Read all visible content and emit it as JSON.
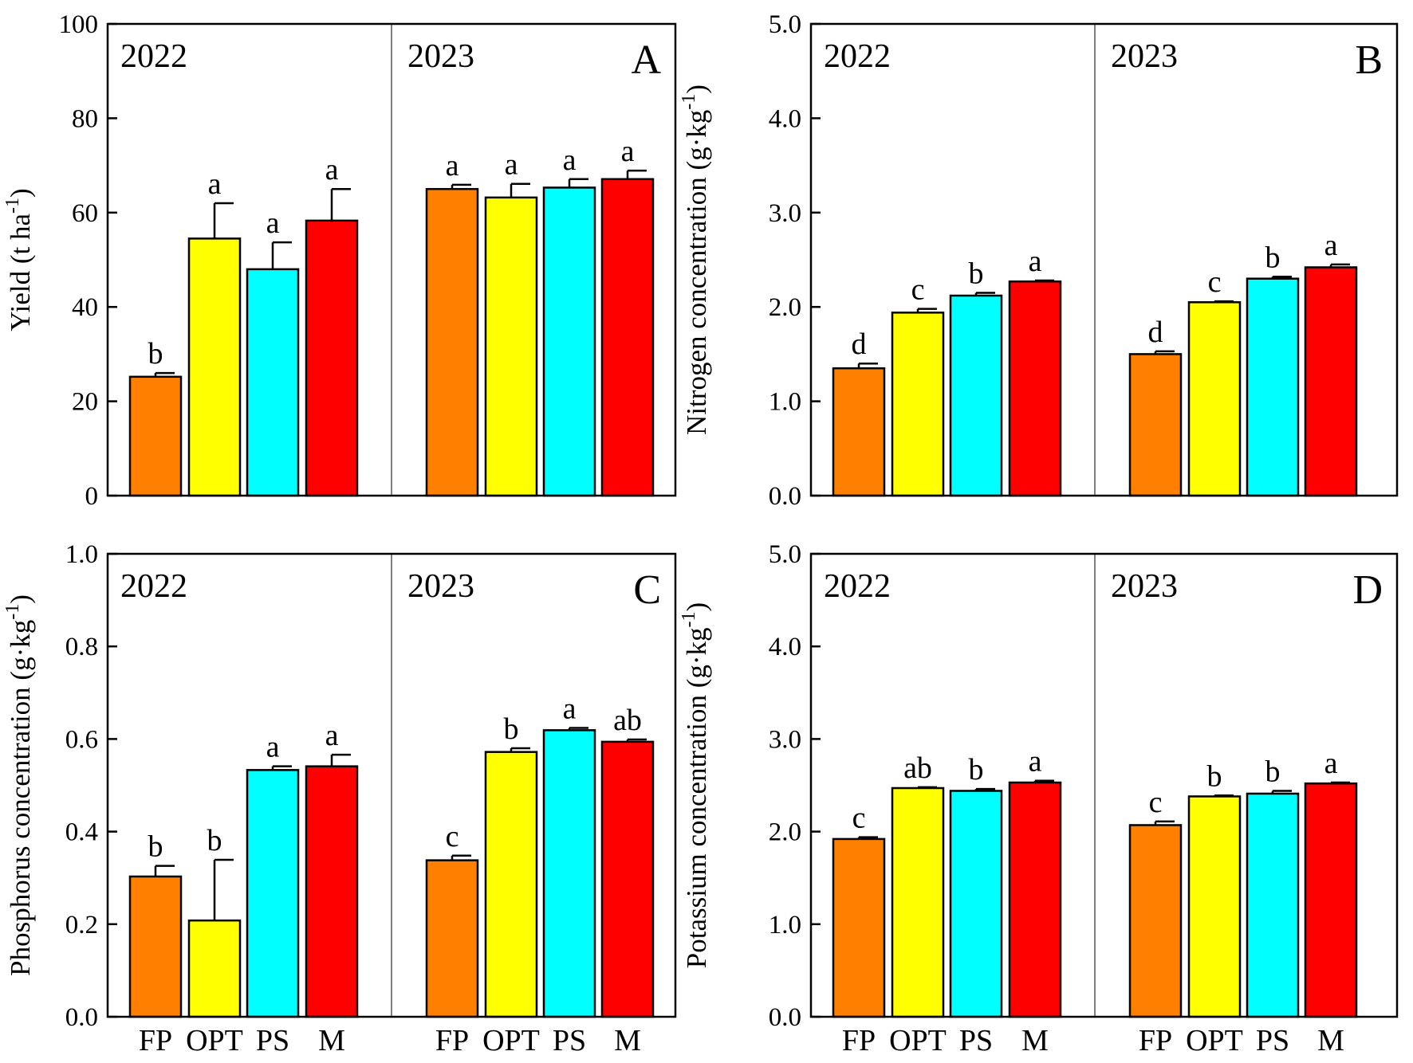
{
  "colors": {
    "FP": "#ff7f00",
    "OPT": "#ffff00",
    "PS": "#00ffff",
    "M": "#ff0000",
    "axis": "#000000"
  },
  "chart_data": [
    {
      "type": "bar",
      "panel": "A",
      "ylabel_main": "Yield (t ha",
      "ylabel_sup": "-1",
      "ylabel_tail": ")",
      "ylim": [
        0,
        100
      ],
      "yticks": [
        "0",
        "20",
        "40",
        "60",
        "80",
        "100"
      ],
      "categories": [
        "FP",
        "OPT",
        "PS",
        "M"
      ],
      "show_xlabels": false,
      "groups": [
        {
          "year": "2022",
          "values": [
            25.2,
            54.5,
            48.0,
            58.3
          ],
          "errors": [
            0.8,
            7.5,
            5.7,
            6.7
          ],
          "letters": [
            "b",
            "a",
            "a",
            "a"
          ]
        },
        {
          "year": "2023",
          "values": [
            65.0,
            63.2,
            65.3,
            67.1
          ],
          "errors": [
            0.9,
            2.9,
            1.8,
            1.8
          ],
          "letters": [
            "a",
            "a",
            "a",
            "a"
          ]
        }
      ]
    },
    {
      "type": "bar",
      "panel": "B",
      "ylabel_main": "Nitrogen concentration (g·kg",
      "ylabel_sup": "-1",
      "ylabel_tail": ")",
      "ylim": [
        0,
        5
      ],
      "yticks": [
        "0.0",
        "1.0",
        "2.0",
        "3.0",
        "4.0",
        "5.0"
      ],
      "categories": [
        "FP",
        "OPT",
        "PS",
        "M"
      ],
      "show_xlabels": false,
      "groups": [
        {
          "year": "2022",
          "values": [
            1.35,
            1.94,
            2.12,
            2.27
          ],
          "errors": [
            0.05,
            0.04,
            0.03,
            0.01
          ],
          "letters": [
            "d",
            "c",
            "b",
            "a"
          ]
        },
        {
          "year": "2023",
          "values": [
            1.5,
            2.05,
            2.3,
            2.42
          ],
          "errors": [
            0.03,
            0.01,
            0.02,
            0.03
          ],
          "letters": [
            "d",
            "c",
            "b",
            "a"
          ]
        }
      ]
    },
    {
      "type": "bar",
      "panel": "C",
      "ylabel_main": "Phosphorus concentration (g·kg",
      "ylabel_sup": "-1",
      "ylabel_tail": ")",
      "ylim": [
        0,
        1.0
      ],
      "yticks": [
        "0.0",
        "0.2",
        "0.4",
        "0.6",
        "0.8",
        "1.0"
      ],
      "categories": [
        "FP",
        "OPT",
        "PS",
        "M"
      ],
      "show_xlabels": true,
      "groups": [
        {
          "year": "2022",
          "values": [
            0.303,
            0.208,
            0.533,
            0.541
          ],
          "errors": [
            0.023,
            0.131,
            0.008,
            0.025
          ],
          "letters": [
            "b",
            "b",
            "a",
            "a"
          ]
        },
        {
          "year": "2023",
          "values": [
            0.338,
            0.572,
            0.619,
            0.594
          ],
          "errors": [
            0.01,
            0.008,
            0.005,
            0.005
          ],
          "letters": [
            "c",
            "b",
            "a",
            "ab"
          ]
        }
      ]
    },
    {
      "type": "bar",
      "panel": "D",
      "ylabel_main": "Potassium concentration (g·kg",
      "ylabel_sup": "-1",
      "ylabel_tail": ")",
      "ylim": [
        0,
        5
      ],
      "yticks": [
        "0.0",
        "1.0",
        "2.0",
        "3.0",
        "4.0",
        "5.0"
      ],
      "categories": [
        "FP",
        "OPT",
        "PS",
        "M"
      ],
      "show_xlabels": true,
      "groups": [
        {
          "year": "2022",
          "values": [
            1.92,
            2.47,
            2.44,
            2.53
          ],
          "errors": [
            0.02,
            0.01,
            0.02,
            0.02
          ],
          "letters": [
            "c",
            "ab",
            "b",
            "a"
          ]
        },
        {
          "year": "2023",
          "values": [
            2.07,
            2.38,
            2.41,
            2.52
          ],
          "errors": [
            0.04,
            0.01,
            0.03,
            0.01
          ],
          "letters": [
            "c",
            "b",
            "b",
            "a"
          ]
        }
      ]
    }
  ]
}
